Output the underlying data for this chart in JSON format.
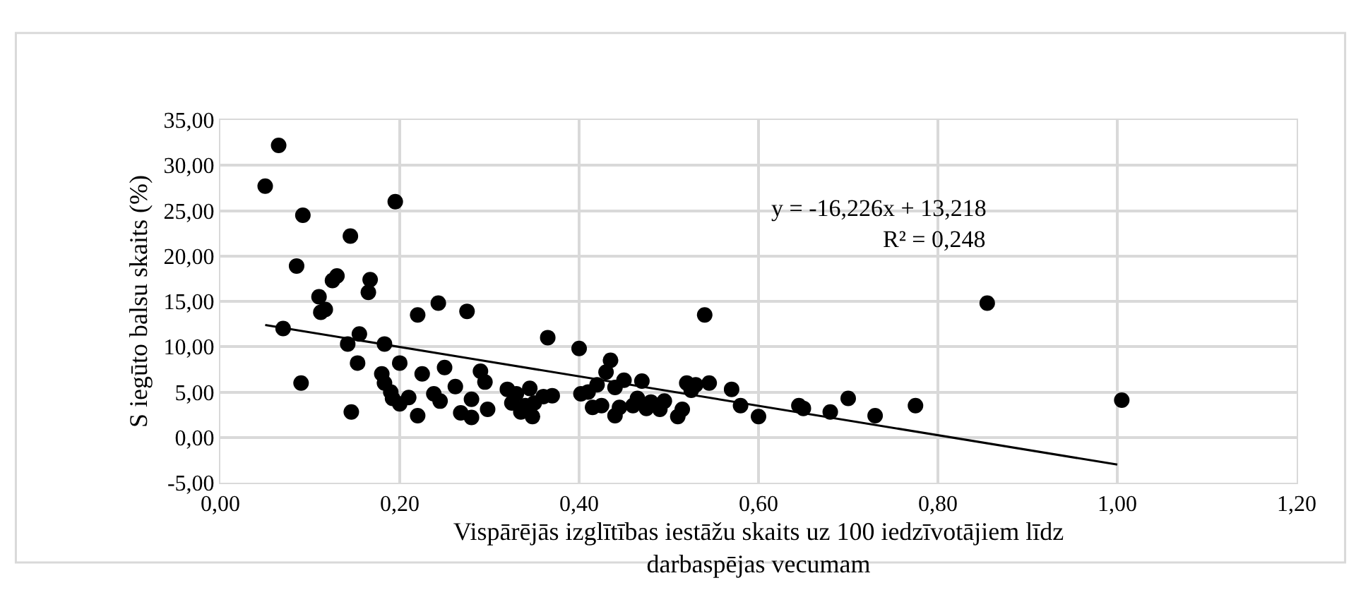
{
  "chart_data": {
    "type": "scatter",
    "xlabel": "Vispārējās izglītības iestāžu skaits uz 100 iedzīvotājiem līdz\ndarbaspējas vecumam",
    "ylabel": "S iegūto balsu skaits (%)",
    "annotations": [
      "y = -16,226x + 13,218",
      "R² = 0,248"
    ],
    "xlim": [
      0,
      1.2
    ],
    "ylim": [
      -5,
      35
    ],
    "xticks": [
      {
        "value": 0,
        "label": "0,00"
      },
      {
        "value": 0.2,
        "label": "0,20"
      },
      {
        "value": 0.4,
        "label": "0,40"
      },
      {
        "value": 0.6,
        "label": "0,60"
      },
      {
        "value": 0.8,
        "label": "0,80"
      },
      {
        "value": 1.0,
        "label": "1,00"
      },
      {
        "value": 1.2,
        "label": "1,20"
      }
    ],
    "yticks": [
      {
        "value": -5,
        "label": "-5,00"
      },
      {
        "value": 0,
        "label": "0,00"
      },
      {
        "value": 5,
        "label": "5,00"
      },
      {
        "value": 10,
        "label": "10,00"
      },
      {
        "value": 15,
        "label": "15,00"
      },
      {
        "value": 20,
        "label": "20,00"
      },
      {
        "value": 25,
        "label": "25,00"
      },
      {
        "value": 30,
        "label": "30,00"
      },
      {
        "value": 35,
        "label": "35,00"
      }
    ],
    "grid": true,
    "marker": "circle",
    "series": [
      {
        "color": "#000000",
        "x": [
          0.05,
          0.065,
          0.07,
          0.085,
          0.09,
          0.092,
          0.11,
          0.112,
          0.117,
          0.125,
          0.13,
          0.142,
          0.145,
          0.146,
          0.153,
          0.155,
          0.165,
          0.167,
          0.183,
          0.18,
          0.183,
          0.19,
          0.2,
          0.195,
          0.192,
          0.2,
          0.21,
          0.22,
          0.22,
          0.225,
          0.238,
          0.243,
          0.245,
          0.25,
          0.262,
          0.268,
          0.275,
          0.28,
          0.28,
          0.29,
          0.295,
          0.298,
          0.32,
          0.325,
          0.33,
          0.335,
          0.34,
          0.345,
          0.348,
          0.35,
          0.36,
          0.365,
          0.37,
          0.4,
          0.402,
          0.41,
          0.415,
          0.42,
          0.425,
          0.43,
          0.435,
          0.44,
          0.44,
          0.445,
          0.45,
          0.46,
          0.465,
          0.47,
          0.475,
          0.48,
          0.49,
          0.495,
          0.51,
          0.515,
          0.52,
          0.525,
          0.53,
          0.54,
          0.545,
          0.57,
          0.58,
          0.6,
          0.645,
          0.65,
          0.68,
          0.7,
          0.73,
          0.775,
          0.855,
          1.005
        ],
        "values": [
          27.7,
          32.2,
          12,
          18.9,
          6,
          24.5,
          15.5,
          13.8,
          14.1,
          17.3,
          17.8,
          10.3,
          22.2,
          2.8,
          8.2,
          11.4,
          16,
          17.4,
          10.3,
          7,
          6,
          5,
          8.2,
          26,
          4.3,
          3.7,
          4.4,
          2.4,
          13.5,
          7,
          4.8,
          14.8,
          4,
          7.7,
          5.6,
          2.7,
          13.9,
          4.2,
          2.2,
          7.3,
          6.1,
          3.1,
          5.3,
          3.8,
          4.8,
          2.8,
          3.5,
          5.4,
          2.3,
          3.8,
          4.5,
          11,
          4.6,
          9.8,
          4.8,
          5,
          3.3,
          5.8,
          3.5,
          7.2,
          8.5,
          2.4,
          5.5,
          3.3,
          6.3,
          3.5,
          4.3,
          6.2,
          3.2,
          3.9,
          3.1,
          4,
          2.3,
          3.1,
          6,
          5.2,
          5.8,
          13.5,
          6,
          5.3,
          3.5,
          2.3,
          3.5,
          3.2,
          2.8,
          4.3,
          2.4,
          3.5,
          14.8,
          4.1
        ]
      },
      {
        "type": "line",
        "color": "#000000",
        "marker": "none",
        "line_style": "solid",
        "x": [
          0.05,
          1.0
        ],
        "values": [
          12.4,
          -3.0
        ]
      }
    ]
  }
}
